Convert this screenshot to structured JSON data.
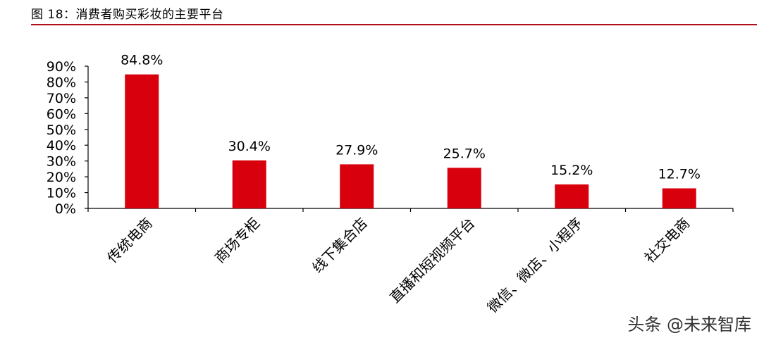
{
  "figure": {
    "title": "图 18：消费者购买彩妆的主要平台",
    "accent_color": "#b20e1b"
  },
  "watermark": "头条 @未来智库",
  "chart_data": {
    "type": "bar",
    "categories": [
      "传统电商",
      "商场专柜",
      "线下集合店",
      "直播和短视频平台",
      "微信、微店、小程序",
      "社交电商"
    ],
    "values": [
      84.8,
      30.4,
      27.9,
      25.7,
      15.2,
      12.7
    ],
    "value_labels": [
      "84.8%",
      "30.4%",
      "27.9%",
      "25.7%",
      "15.2%",
      "12.7%"
    ],
    "ylim": [
      0,
      90
    ],
    "yticks": [
      0,
      10,
      20,
      30,
      40,
      50,
      60,
      70,
      80,
      90
    ],
    "ytick_labels": [
      "0%",
      "10%",
      "20%",
      "30%",
      "40%",
      "50%",
      "60%",
      "70%",
      "80%",
      "90%"
    ],
    "bar_color": "#d9000d",
    "grid": false,
    "legend": "none"
  }
}
